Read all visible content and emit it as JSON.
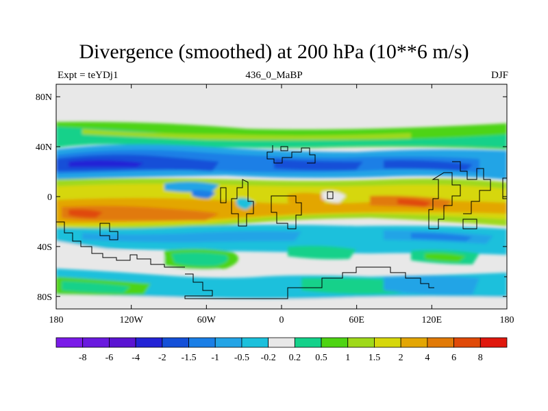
{
  "title": "Divergence (smoothed) at 200 hPa (10**6 m/s)",
  "subtitle_left": "Expt = teYDj1",
  "subtitle_center": "436_0_MaBP",
  "subtitle_right": "DJF",
  "axes": {
    "y_ticks": [
      {
        "lat": 80,
        "label": "80N"
      },
      {
        "lat": 40,
        "label": "40N"
      },
      {
        "lat": 0,
        "label": "0"
      },
      {
        "lat": -40,
        "label": "40S"
      },
      {
        "lat": -80,
        "label": "80S"
      }
    ],
    "x_ticks": [
      {
        "lon": -180,
        "label": "180"
      },
      {
        "lon": -120,
        "label": "120W"
      },
      {
        "lon": -60,
        "label": "60W"
      },
      {
        "lon": 0,
        "label": "0"
      },
      {
        "lon": 60,
        "label": "60E"
      },
      {
        "lon": 120,
        "label": "120E"
      },
      {
        "lon": 180,
        "label": "180"
      }
    ]
  },
  "colorbar": {
    "colors": [
      "#7a1be8",
      "#6a1adf",
      "#5a14d2",
      "#2323d6",
      "#1450d8",
      "#1a7fe6",
      "#23a4e6",
      "#1cc0dc",
      "#e8e8e8",
      "#14d18a",
      "#4ed413",
      "#9fd91a",
      "#d6d70b",
      "#e3a604",
      "#e17a07",
      "#e04a08",
      "#e0180d"
    ],
    "labels": [
      "-8",
      "-6",
      "-4",
      "-2",
      "-1.5",
      "-1",
      "-0.5",
      "-0.2",
      "0.2",
      "0.5",
      "1",
      "1.5",
      "2",
      "4",
      "6",
      "8"
    ]
  }
}
